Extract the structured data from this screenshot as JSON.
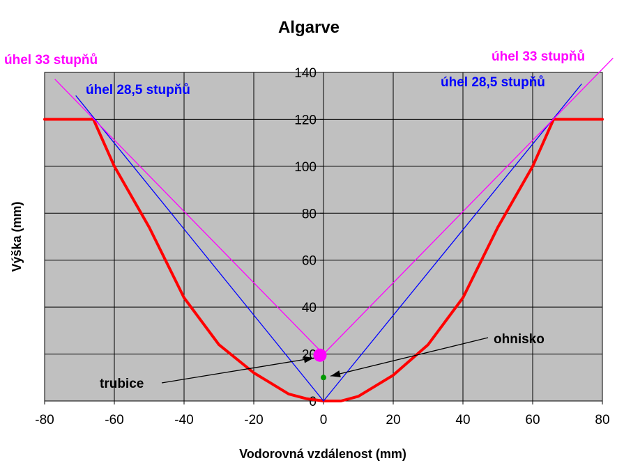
{
  "chart_data": {
    "type": "line",
    "title": "Algarve",
    "xlabel": "Vodorovná vzdálenost (mm)",
    "ylabel": "Výška (mm)",
    "xlim": [
      -80,
      80
    ],
    "ylim": [
      0,
      140
    ],
    "x_ticks": [
      -80,
      -60,
      -40,
      -20,
      0,
      20,
      40,
      60,
      80
    ],
    "y_ticks": [
      0,
      20,
      40,
      60,
      80,
      100,
      120,
      140
    ],
    "grid": true,
    "plot_background": "#c0c0c0",
    "series": [
      {
        "color": "#ff0000",
        "points": [
          [
            -80,
            120
          ],
          [
            -66,
            120
          ],
          [
            -60,
            100
          ],
          [
            -50,
            74
          ],
          [
            -40,
            44
          ],
          [
            -30,
            24
          ],
          [
            -20,
            12
          ],
          [
            -10,
            3
          ],
          [
            -5,
            1
          ],
          [
            0,
            0
          ],
          [
            5,
            0
          ],
          [
            10,
            2
          ],
          [
            20,
            11
          ],
          [
            30,
            24
          ],
          [
            40,
            44
          ],
          [
            50,
            74
          ],
          [
            60,
            100
          ],
          [
            66,
            120
          ],
          [
            80,
            120
          ]
        ]
      },
      {
        "name": "úhel 28,5 stupňů",
        "color": "#0000ff",
        "points": [
          [
            -71,
            130
          ],
          [
            0,
            0
          ],
          [
            74,
            135
          ]
        ]
      },
      {
        "name": "úhel 33 stupňů",
        "color": "#ff00ff",
        "points": [
          [
            -77,
            137
          ],
          [
            0,
            20
          ],
          [
            83,
            146
          ]
        ]
      }
    ],
    "markers": [
      {
        "label": "trubice",
        "x": -1,
        "y": 19.5,
        "color": "#ff00ff"
      },
      {
        "label": "ohnisko",
        "x": 0,
        "y": 10,
        "color": "#009900"
      }
    ],
    "annotations": {
      "magenta_left": "úhel 33 stupňů",
      "magenta_right": "úhel 33 stupňů",
      "blue_left": "úhel 28,5 stupňů",
      "blue_right": "úhel 28,5 stupňů",
      "trubice": "trubice",
      "ohnisko": "ohnisko"
    }
  }
}
